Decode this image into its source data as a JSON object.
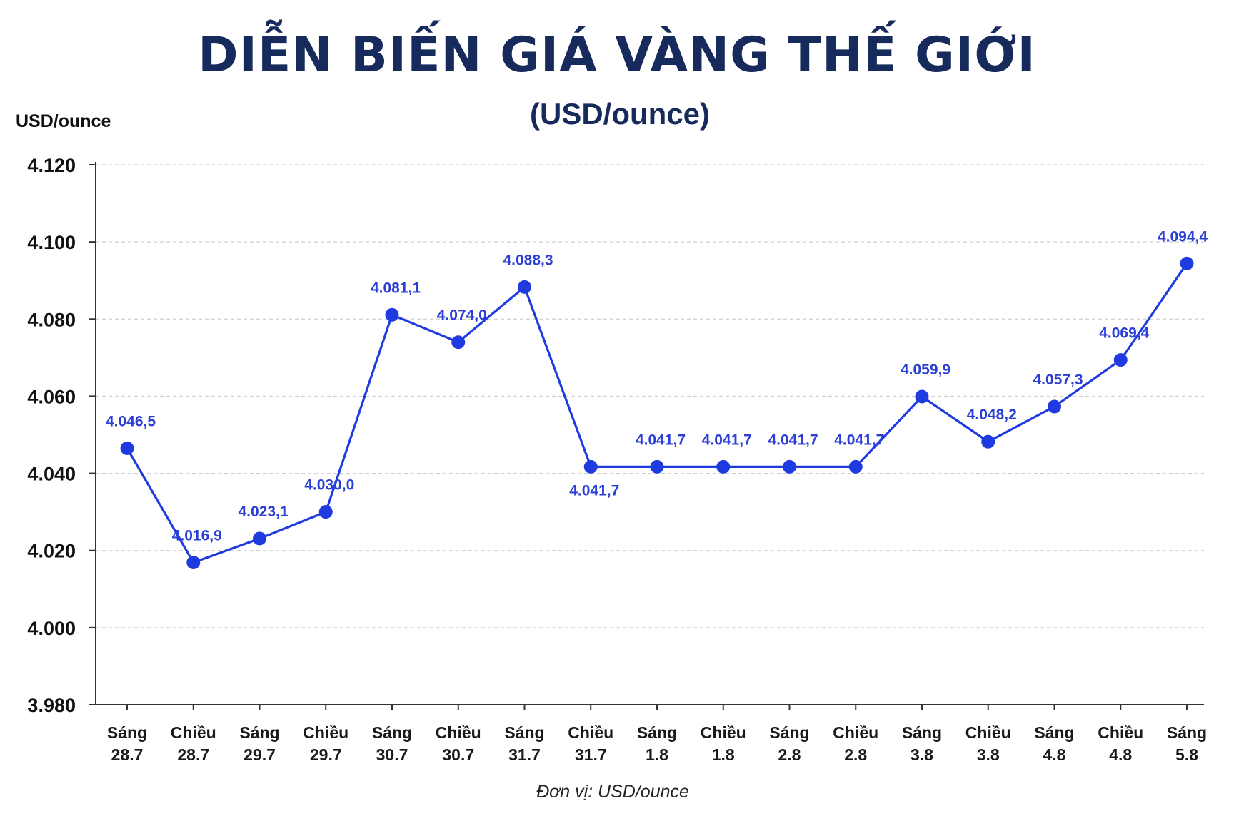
{
  "chart_data": {
    "type": "line",
    "title": "DIỄN BIẾN GIÁ VÀNG THẾ GIỚI",
    "subtitle": "(USD/ounce)",
    "ylabel": "USD/ounce",
    "footnote": "Đơn vị: USD/ounce",
    "ylim": [
      3980,
      4120
    ],
    "yticks": [
      3980,
      4000,
      4020,
      4040,
      4060,
      4080,
      4100,
      4120
    ],
    "ytick_labels": [
      "3.980",
      "4.000",
      "4.020",
      "4.040",
      "4.060",
      "4.080",
      "4.100",
      "4.120"
    ],
    "grid": true,
    "color": "#1f3be0",
    "categories": [
      [
        "Sáng",
        "28.7"
      ],
      [
        "Chiều",
        "28.7"
      ],
      [
        "Sáng",
        "29.7"
      ],
      [
        "Chiều",
        "29.7"
      ],
      [
        "Sáng",
        "30.7"
      ],
      [
        "Chiều",
        "30.7"
      ],
      [
        "Sáng",
        "31.7"
      ],
      [
        "Chiều",
        "31.7"
      ],
      [
        "Sáng",
        "1.8"
      ],
      [
        "Chiều",
        "1.8"
      ],
      [
        "Sáng",
        "2.8"
      ],
      [
        "Chiều",
        "2.8"
      ],
      [
        "Sáng",
        "3.8"
      ],
      [
        "Chiều",
        "3.8"
      ],
      [
        "Sáng",
        "4.8"
      ],
      [
        "Chiều",
        "4.8"
      ],
      [
        "Sáng",
        "5.8"
      ]
    ],
    "values": [
      4046.5,
      4016.9,
      4023.1,
      4030.0,
      4081.1,
      4074.0,
      4088.3,
      4041.7,
      4041.7,
      4041.7,
      4041.7,
      4041.7,
      4059.9,
      4048.2,
      4057.3,
      4069.4,
      4094.4
    ],
    "data_labels": [
      "4.046,5",
      "4.016,9",
      "4.023,1",
      "4.030,0",
      "4.081,1",
      "4.074,0",
      "4.088,3",
      "4.041,7",
      "4.041,7",
      "4.041,7",
      "4.041,7",
      "4.041,7",
      "4.059,9",
      "4.048,2",
      "4.057,3",
      "4.069,4",
      "4.094,4"
    ]
  }
}
